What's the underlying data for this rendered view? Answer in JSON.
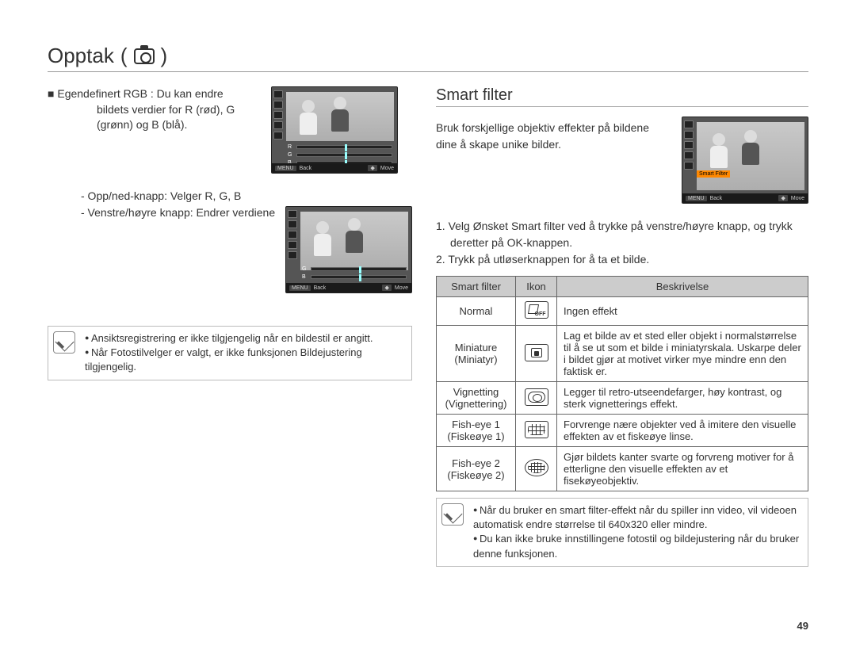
{
  "page": {
    "title": "Opptak",
    "number": "49"
  },
  "left": {
    "rgb_label": "Egendefinert RGB :",
    "rgb_desc": "Du kan endre bildets verdier for R (rød), G (grønn) og B (blå).",
    "keys": {
      "updown": "- Opp/ned-knapp: Velger R, G, B",
      "leftright": "- Venstre/høyre knapp: Endrer verdiene"
    },
    "notes": [
      "Ansiktsregistrering er ikke tilgjengelig når en bildestil er angitt.",
      "Når Fotostilvelger er valgt, er ikke funksjonen Bildejustering tilgjengelig."
    ]
  },
  "thumb": {
    "back": "Back",
    "move": "Move",
    "menu": "MENU",
    "smart_filter": "Smart Filter",
    "sliders_full": [
      "R",
      "G",
      "B"
    ],
    "sliders_two": [
      "G",
      "B"
    ]
  },
  "right": {
    "section": "Smart filter",
    "intro": "Bruk forskjellige objektiv effekter på bildene dine å skape unike bilder.",
    "steps": [
      "1. Velg Ønsket Smart filter ved å trykke på venstre/høyre knapp, og trykk deretter på OK-knappen.",
      "2. Trykk på utløserknappen for å ta et bilde."
    ],
    "table": {
      "headers": [
        "Smart filter",
        "Ikon",
        "Beskrivelse"
      ],
      "rows": [
        {
          "name": "Normal",
          "icon": "off",
          "desc": "Ingen effekt"
        },
        {
          "name": "Miniature (Miniatyr)",
          "icon": "mini",
          "desc": "Lag et bilde av et sted eller objekt i normalstørrelse til å se ut som et bilde i miniatyrskala. Uskarpe deler i bildet gjør at motivet virker mye mindre enn den faktisk er."
        },
        {
          "name": "Vignetting (Vignettering)",
          "icon": "vig",
          "desc": "Legger til retro-utseendefarger, høy kontrast, og sterk vignetterings effekt."
        },
        {
          "name": "Fish-eye 1 (Fiskeøye 1)",
          "icon": "fish1",
          "desc": "Forvrenge nære objekter ved å imitere den visuelle effekten av et fiskeøye linse."
        },
        {
          "name": "Fish-eye 2 (Fiskeøye 2)",
          "icon": "fish2",
          "desc": "Gjør bildets kanter svarte og forvreng motiver for å etterligne den visuelle effekten av et fisekøyeobjektiv."
        }
      ]
    },
    "notes": [
      "Når du bruker en smart filter-effekt når du spiller inn video, vil videoen automatisk endre størrelse til 640x320 eller mindre.",
      "Du kan ikke bruke innstillingene fotostil og bildejustering når du bruker denne funksjonen."
    ]
  }
}
